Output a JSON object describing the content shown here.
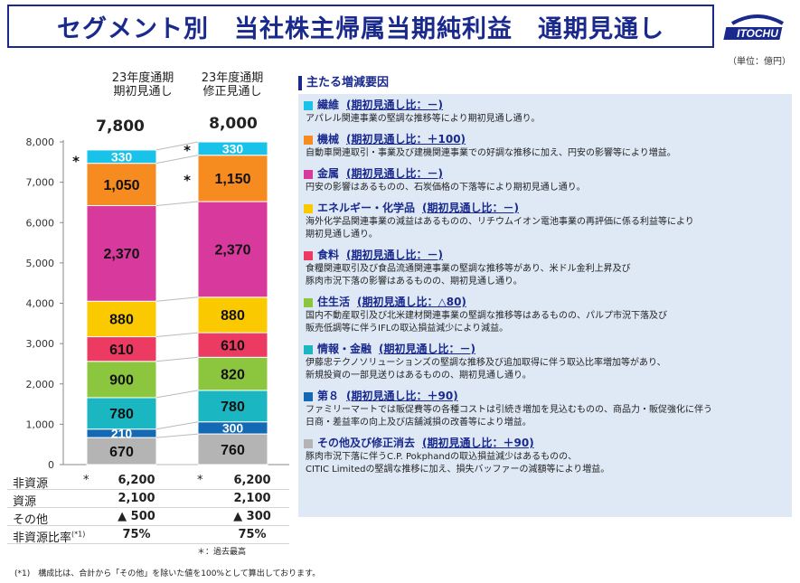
{
  "page": {
    "title": "セグメント別　当社株主帰属当期純利益　通期見通し",
    "logo_text": "ITOCHU",
    "unit": "（単位：億円）"
  },
  "chart_data": {
    "type": "bar",
    "stacked": true,
    "categories": [
      "23年度通期\n期初見通し",
      "23年度通期\n修正見通し"
    ],
    "category_lines": [
      [
        "23年度通期",
        "期初見通し"
      ],
      [
        "23年度通期",
        "修正見通し"
      ]
    ],
    "totals": [
      "7,800",
      "8,000"
    ],
    "ylim": [
      0,
      8000
    ],
    "yticks": [
      "0",
      "1,000",
      "2,000",
      "3,000",
      "4,000",
      "5,000",
      "6,000",
      "7,000",
      "8,000"
    ],
    "series": [
      {
        "name": "その他及び修正消去",
        "color": "#b4b4b4",
        "values": [
          670,
          760
        ],
        "labels": [
          "670",
          "760"
        ]
      },
      {
        "name": "第８",
        "color": "#1369b4",
        "values": [
          210,
          300
        ],
        "labels": [
          "210",
          "300"
        ]
      },
      {
        "name": "情報・金融",
        "color": "#1ab6c1",
        "values": [
          780,
          780
        ],
        "labels": [
          "780",
          "780"
        ]
      },
      {
        "name": "住生活",
        "color": "#8cc63f",
        "values": [
          900,
          820
        ],
        "labels": [
          "900",
          "820"
        ]
      },
      {
        "name": "食料",
        "color": "#ec3a63",
        "values": [
          610,
          610
        ],
        "labels": [
          "610",
          "610"
        ]
      },
      {
        "name": "エネルギー・化学品",
        "color": "#fbc900",
        "values": [
          880,
          880
        ],
        "labels": [
          "880",
          "880"
        ]
      },
      {
        "name": "金属",
        "color": "#d7399c",
        "values": [
          2370,
          2370
        ],
        "labels": [
          "2,370",
          "2,370"
        ]
      },
      {
        "name": "機械",
        "color": "#f68b1f",
        "values": [
          1050,
          1150
        ],
        "labels": [
          "1,050",
          "1,150"
        ]
      },
      {
        "name": "繊維",
        "color": "#19c2e8",
        "values": [
          330,
          330
        ],
        "labels": [
          "330",
          "330"
        ]
      }
    ],
    "asterisks": {
      "bar1_series": [
        "繊維"
      ],
      "bar2_series": [
        "繊維",
        "機械"
      ],
      "symbol": "*"
    }
  },
  "table": {
    "rows": [
      {
        "label": "非資源",
        "mark1": "*",
        "v1": "6,200",
        "mark2": "*",
        "v2": "6,200"
      },
      {
        "label": "資源",
        "mark1": "",
        "v1": "2,100",
        "mark2": "",
        "v2": "2,100"
      },
      {
        "label": "その他",
        "mark1": "",
        "v1": "▲ 500",
        "mark2": "",
        "v2": "▲ 300"
      },
      {
        "label": "非資源比率",
        "sup": "(*1)",
        "mark1": "",
        "v1": "75%",
        "mark2": "",
        "v2": "75%"
      }
    ],
    "note": "＊：過去最高"
  },
  "footnote": "(*1)　構成比は、合計から「その他」を除いた値を100%として算出しております。",
  "reasons": {
    "title": "主たる増減要因",
    "items": [
      {
        "color": "#19c2e8",
        "name": "繊維",
        "cmp": "(期初見通し比：－)",
        "lines": [
          "アパレル関連事業の堅調な推移等により期初見通し通り。"
        ]
      },
      {
        "color": "#f68b1f",
        "name": "機械",
        "cmp": "(期初見通し比：＋100)",
        "lines": [
          "自動車関連取引・事業及び建機関連事業での好調な推移に加え、円安の影響等により増益。"
        ]
      },
      {
        "color": "#d7399c",
        "name": "金属",
        "cmp": "(期初見通し比：－)",
        "lines": [
          "円安の影響はあるものの、石炭価格の下落等により期初見通し通り。"
        ]
      },
      {
        "color": "#fbc900",
        "name": "エネルギー・化学品",
        "cmp": "(期初見通し比：－)",
        "lines": [
          "海外化学品関連事業の減益はあるものの、リチウムイオン電池事業の再評価に係る利益等により",
          "期初見通し通り。"
        ]
      },
      {
        "color": "#ec3a63",
        "name": "食料",
        "cmp": "(期初見通し比：－)",
        "lines": [
          "食糧関連取引及び食品流通関連事業の堅調な推移等があり、米ドル金利上昇及び",
          "豚肉市況下落の影響はあるものの、期初見通し通り。"
        ]
      },
      {
        "color": "#8cc63f",
        "name": "住生活",
        "cmp": "(期初見通し比：△80)",
        "lines": [
          "国内不動産取引及び北米建材関連事業の堅調な推移等はあるものの、パルプ市況下落及び",
          "販売低調等に伴うIFLの取込損益減少により減益。"
        ]
      },
      {
        "color": "#1ab6c1",
        "name": "情報・金融",
        "cmp": "(期初見通し比：－)",
        "lines": [
          "伊藤忠テクノソリューションズの堅調な推移及び追加取得に伴う取込比率増加等があり、",
          "新規投資の一部見送りはあるものの、期初見通し通り。"
        ]
      },
      {
        "color": "#1369b4",
        "name": "第８",
        "cmp": "(期初見通し比：＋90)",
        "lines": [
          "ファミリーマートでは販促費等の各種コストは引続き増加を見込むものの、商品力・販促強化に伴う",
          "日商・差益率の向上及び店舗減損の改善等により増益。"
        ]
      },
      {
        "color": "#b4b4b4",
        "name": "その他及び修正消去",
        "cmp": "(期初見通し比：＋90)",
        "lines": [
          "豚肉市況下落に伴うC.P. Pokphandの取込損益減少はあるものの、",
          "CITIC Limitedの堅調な推移に加え、損失バッファーの減額等により増益。"
        ]
      }
    ]
  }
}
